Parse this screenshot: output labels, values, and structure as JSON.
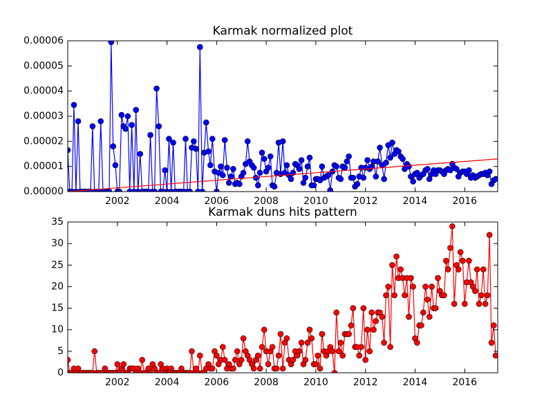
{
  "chart_data": [
    {
      "type": "line",
      "title": "Karmak normalized plot",
      "xlim": [
        2000.0,
        2017.33
      ],
      "xticks": [
        2002,
        2004,
        2006,
        2008,
        2010,
        2012,
        2014,
        2016
      ],
      "ylim": [
        0,
        6e-05
      ],
      "yticks": [
        {
          "value": 0,
          "label": "0.00000"
        },
        {
          "value": 1e-05,
          "label": "0.00001"
        },
        {
          "value": 2e-05,
          "label": "0.00002"
        },
        {
          "value": 3e-05,
          "label": "0.00003"
        },
        {
          "value": 4e-05,
          "label": "0.00004"
        },
        {
          "value": 5e-05,
          "label": "0.00005"
        },
        {
          "value": 6e-05,
          "label": "0.00006"
        }
      ],
      "series": [
        {
          "color": "#0000ff",
          "x": [
            2000,
            2000.08,
            2000.17,
            2000.25,
            2000.33,
            2000.42,
            2000.5,
            2000.58,
            2000.67,
            2000.75,
            2000.83,
            2000.92,
            2001,
            2001.08,
            2001.17,
            2001.25,
            2001.33,
            2001.42,
            2001.5,
            2001.58,
            2001.67,
            2001.75,
            2001.83,
            2001.92,
            2002,
            2002.08,
            2002.17,
            2002.25,
            2002.33,
            2002.42,
            2002.5,
            2002.58,
            2002.67,
            2002.75,
            2002.83,
            2002.92,
            2003,
            2003.08,
            2003.17,
            2003.25,
            2003.33,
            2003.42,
            2003.5,
            2003.58,
            2003.67,
            2003.75,
            2003.83,
            2003.92,
            2004,
            2004.08,
            2004.17,
            2004.25,
            2004.33,
            2004.42,
            2004.5,
            2004.58,
            2004.67,
            2004.75,
            2004.83,
            2004.92,
            2005,
            2005.08,
            2005.17,
            2005.25,
            2005.33,
            2005.42,
            2005.5,
            2005.58,
            2005.67,
            2005.75,
            2005.83,
            2005.92,
            2006,
            2006.08,
            2006.17,
            2006.25,
            2006.33,
            2006.42,
            2006.5,
            2006.58,
            2006.67,
            2006.75,
            2006.83,
            2006.92,
            2007,
            2007.08,
            2007.17,
            2007.25,
            2007.33,
            2007.42,
            2007.5,
            2007.58,
            2007.67,
            2007.75,
            2007.83,
            2007.92,
            2008,
            2008.08,
            2008.17,
            2008.25,
            2008.33,
            2008.42,
            2008.5,
            2008.58,
            2008.67,
            2008.75,
            2008.83,
            2008.92,
            2009,
            2009.08,
            2009.17,
            2009.25,
            2009.33,
            2009.42,
            2009.5,
            2009.58,
            2009.67,
            2009.75,
            2009.83,
            2009.92,
            2010,
            2010.08,
            2010.17,
            2010.25,
            2010.33,
            2010.42,
            2010.5,
            2010.58,
            2010.67,
            2010.75,
            2010.83,
            2010.92,
            2011,
            2011.08,
            2011.17,
            2011.25,
            2011.33,
            2011.42,
            2011.5,
            2011.58,
            2011.67,
            2011.75,
            2011.83,
            2011.92,
            2012,
            2012.08,
            2012.17,
            2012.25,
            2012.33,
            2012.42,
            2012.5,
            2012.58,
            2012.67,
            2012.75,
            2012.83,
            2012.92,
            2013,
            2013.08,
            2013.17,
            2013.25,
            2013.33,
            2013.42,
            2013.5,
            2013.58,
            2013.67,
            2013.75,
            2013.83,
            2013.92,
            2014,
            2014.08,
            2014.17,
            2014.25,
            2014.33,
            2014.42,
            2014.5,
            2014.58,
            2014.67,
            2014.75,
            2014.83,
            2014.92,
            2015,
            2015.08,
            2015.17,
            2015.25,
            2015.33,
            2015.42,
            2015.5,
            2015.58,
            2015.67,
            2015.75,
            2015.83,
            2015.92,
            2016,
            2016.08,
            2016.17,
            2016.25,
            2016.33,
            2016.42,
            2016.5,
            2016.58,
            2016.67,
            2016.75,
            2016.83,
            2016.92,
            2017,
            2017.08,
            2017.17,
            2017.25
          ],
          "values": [
            1.65e-05,
            0,
            0,
            3.45e-05,
            0,
            2.8e-05,
            0,
            0,
            0,
            0,
            0,
            0,
            2.6e-05,
            0,
            0,
            0,
            2.8e-05,
            0,
            0,
            0,
            0,
            5.95e-05,
            1.8e-05,
            1.05e-05,
            0,
            0,
            3.05e-05,
            2.6e-05,
            2.5e-05,
            3e-05,
            0,
            2.65e-05,
            0,
            3.25e-05,
            0,
            1.5e-05,
            0,
            0,
            0,
            0,
            2.25e-05,
            0,
            0,
            4.1e-05,
            2.6e-05,
            0,
            0,
            8.5e-06,
            0,
            2.1e-05,
            0,
            1.95e-05,
            0,
            0,
            0,
            0,
            0,
            2.1e-05,
            0,
            0,
            1.75e-05,
            2e-05,
            1.7e-05,
            0,
            5.75e-05,
            0,
            1.55e-05,
            2.75e-05,
            1.6e-05,
            1.05e-05,
            2.1e-05,
            8e-06,
            0,
            7.5e-06,
            1e-05,
            6.5e-06,
            2.05e-05,
            9.5e-06,
            3.5e-06,
            6e-06,
            9e-06,
            3e-06,
            3.5e-06,
            3e-06,
            6e-06,
            7.5e-06,
            1.1e-05,
            2e-05,
            1.2e-05,
            1.05e-05,
            9.5e-06,
            5.5e-06,
            2.5e-06,
            7.5e-06,
            1.55e-05,
            1.3e-05,
            8e-06,
            9.5e-06,
            1.4e-05,
            2.5e-06,
            2e-06,
            7.5e-06,
            1.95e-05,
            7e-06,
            2e-05,
            7.5e-06,
            1.05e-05,
            6.5e-06,
            5e-06,
            7.5e-06,
            1.1e-05,
            1.05e-05,
            9e-06,
            1.25e-05,
            3.5e-06,
            5.5e-06,
            1e-05,
            1.35e-05,
            2.5e-06,
            2.5e-06,
            5e-06,
            5e-06,
            4.5e-06,
            1e-05,
            5.5e-06,
            6e-06,
            6.5e-06,
            5e-07,
            8e-06,
            1.05e-05,
            1e-05,
            5.5e-06,
            5e-06,
            1e-05,
            9.5e-06,
            1.2e-05,
            1.4e-05,
            5.5e-06,
            5.5e-06,
            2e-06,
            3e-06,
            6e-06,
            9.5e-06,
            5.5e-06,
            9.5e-06,
            1.25e-05,
            9e-06,
            1e-05,
            1.2e-05,
            6e-06,
            1.2e-05,
            1.75e-05,
            1.05e-05,
            5e-06,
            1.15e-05,
            1.85e-05,
            1.35e-05,
            1.95e-05,
            1.5e-05,
            1.65e-05,
            1.6e-05,
            1.4e-05,
            1.3e-05,
            9e-06,
            1.1e-05,
            1e-05,
            6e-06,
            4e-06,
            7e-06,
            7.5e-06,
            5.5e-06,
            6.5e-06,
            7e-06,
            8.5e-06,
            9e-06,
            5e-06,
            7e-06,
            8.5e-06,
            7e-06,
            8.5e-06,
            8.5e-06,
            8e-06,
            7e-06,
            8.5e-06,
            9e-06,
            8.5e-06,
            1.1e-05,
            9.5e-06,
            9e-06,
            6e-06,
            7.5e-06,
            8e-06,
            8e-06,
            7e-06,
            8.5e-06,
            5.5e-06,
            6.5e-06,
            5.5e-06,
            6e-06,
            6.5e-06,
            7e-06,
            7e-06,
            7.5e-06,
            6.5e-06,
            8e-06,
            3e-06,
            4.5e-06,
            5e-06
          ]
        }
      ],
      "trend": {
        "color": "#ff0000",
        "x": [
          2000.0,
          2017.33
        ],
        "values": [
          0,
          1.3e-05
        ]
      }
    },
    {
      "type": "line",
      "title": "Karmak duns hits pattern",
      "xlim": [
        2000.0,
        2017.33
      ],
      "xticks": [
        2002,
        2004,
        2006,
        2008,
        2010,
        2012,
        2014,
        2016
      ],
      "ylim": [
        0,
        35
      ],
      "yticks": [
        0,
        5,
        10,
        15,
        20,
        25,
        30,
        35
      ],
      "series": [
        {
          "color": "#ff0000",
          "x": [
            2000,
            2000.08,
            2000.17,
            2000.25,
            2000.33,
            2000.42,
            2000.5,
            2000.58,
            2000.67,
            2000.75,
            2000.83,
            2000.92,
            2001,
            2001.08,
            2001.17,
            2001.25,
            2001.33,
            2001.42,
            2001.5,
            2001.58,
            2001.67,
            2001.75,
            2001.83,
            2001.92,
            2002,
            2002.08,
            2002.17,
            2002.25,
            2002.33,
            2002.42,
            2002.5,
            2002.58,
            2002.67,
            2002.75,
            2002.83,
            2002.92,
            2003,
            2003.08,
            2003.17,
            2003.25,
            2003.33,
            2003.42,
            2003.5,
            2003.58,
            2003.67,
            2003.75,
            2003.83,
            2003.92,
            2004,
            2004.08,
            2004.17,
            2004.25,
            2004.33,
            2004.42,
            2004.5,
            2004.58,
            2004.67,
            2004.75,
            2004.83,
            2004.92,
            2005,
            2005.08,
            2005.17,
            2005.25,
            2005.33,
            2005.42,
            2005.5,
            2005.58,
            2005.67,
            2005.75,
            2005.83,
            2005.92,
            2006,
            2006.08,
            2006.17,
            2006.25,
            2006.33,
            2006.42,
            2006.5,
            2006.58,
            2006.67,
            2006.75,
            2006.83,
            2006.92,
            2007,
            2007.08,
            2007.17,
            2007.25,
            2007.33,
            2007.42,
            2007.5,
            2007.58,
            2007.67,
            2007.75,
            2007.83,
            2007.92,
            2008,
            2008.08,
            2008.17,
            2008.25,
            2008.33,
            2008.42,
            2008.5,
            2008.58,
            2008.67,
            2008.75,
            2008.83,
            2008.92,
            2009,
            2009.08,
            2009.17,
            2009.25,
            2009.33,
            2009.42,
            2009.5,
            2009.58,
            2009.67,
            2009.75,
            2009.83,
            2009.92,
            2010,
            2010.08,
            2010.17,
            2010.25,
            2010.33,
            2010.42,
            2010.5,
            2010.58,
            2010.67,
            2010.75,
            2010.83,
            2010.92,
            2011,
            2011.08,
            2011.17,
            2011.25,
            2011.33,
            2011.42,
            2011.5,
            2011.58,
            2011.67,
            2011.75,
            2011.83,
            2011.92,
            2012,
            2012.08,
            2012.17,
            2012.25,
            2012.33,
            2012.42,
            2012.5,
            2012.58,
            2012.67,
            2012.75,
            2012.83,
            2012.92,
            2013,
            2013.08,
            2013.17,
            2013.25,
            2013.33,
            2013.42,
            2013.5,
            2013.58,
            2013.67,
            2013.75,
            2013.83,
            2013.92,
            2014,
            2014.08,
            2014.17,
            2014.25,
            2014.33,
            2014.42,
            2014.5,
            2014.58,
            2014.67,
            2014.75,
            2014.83,
            2014.92,
            2015,
            2015.08,
            2015.17,
            2015.25,
            2015.33,
            2015.42,
            2015.5,
            2015.58,
            2015.67,
            2015.75,
            2015.83,
            2015.92,
            2016,
            2016.08,
            2016.17,
            2016.25,
            2016.33,
            2016.42,
            2016.5,
            2016.58,
            2016.67,
            2016.75,
            2016.83,
            2016.92,
            2017,
            2017.08,
            2017.17,
            2017.25
          ],
          "values": [
            3,
            0,
            0,
            1,
            0,
            1,
            0,
            0,
            0,
            0,
            0,
            0,
            0,
            5,
            0,
            0,
            0,
            0,
            1,
            0,
            0,
            0,
            0,
            0,
            2,
            0,
            1,
            2,
            0,
            0,
            1,
            1,
            1,
            0,
            1,
            0,
            3,
            0,
            0,
            1,
            0,
            2,
            1,
            0,
            0,
            2,
            1,
            0,
            1,
            0,
            1,
            0,
            0,
            0,
            0,
            1,
            0,
            0,
            0,
            0,
            5,
            0,
            1,
            0,
            4,
            0,
            0,
            1,
            2,
            1,
            1,
            5,
            4,
            2,
            3,
            6,
            3,
            1,
            2,
            1,
            1,
            3,
            5,
            2,
            3,
            8,
            5,
            4,
            3,
            2,
            1,
            3,
            4,
            1,
            6,
            10,
            5,
            2,
            5,
            6,
            1,
            1,
            4,
            9,
            1,
            7,
            8,
            3,
            2,
            3,
            5,
            4,
            5,
            7,
            2,
            3,
            7,
            10,
            8,
            2,
            2,
            4,
            1,
            9,
            5,
            4,
            5,
            6,
            5,
            0,
            14,
            5,
            7,
            4,
            9,
            9,
            9,
            11,
            15,
            6,
            6,
            4,
            6,
            15,
            3,
            10,
            5,
            14,
            10,
            12,
            14,
            14,
            13,
            7,
            18,
            20,
            6,
            25,
            18,
            27,
            22,
            24,
            22,
            18,
            22,
            13,
            22,
            20,
            8,
            7,
            11,
            11,
            14,
            20,
            17,
            13,
            20,
            15,
            15,
            22,
            19,
            18,
            18,
            26,
            24,
            29,
            34,
            16,
            25,
            24,
            28,
            26,
            16,
            21,
            26,
            21,
            20,
            19,
            24,
            16,
            18,
            24,
            16,
            18,
            32,
            7,
            11,
            4
          ]
        }
      ]
    }
  ]
}
